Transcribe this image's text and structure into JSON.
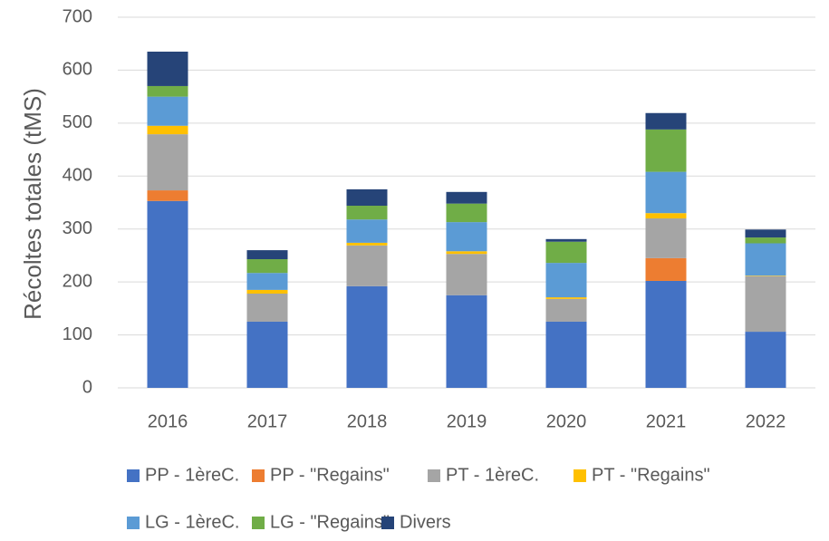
{
  "chart_data": {
    "type": "stacked_bar",
    "y_label": "Récoltes totales (tMS)",
    "categories": [
      "2016",
      "2017",
      "2018",
      "2019",
      "2020",
      "2021",
      "2022"
    ],
    "series": [
      {
        "name": "PP - 1èreC.",
        "color": "#4472c4",
        "values": [
          353,
          125,
          192,
          175,
          125,
          202,
          106
        ]
      },
      {
        "name": "PP - \"Regains\"",
        "color": "#ed7d31",
        "values": [
          20,
          0,
          0,
          0,
          0,
          43,
          0
        ]
      },
      {
        "name": "PT - 1èreC.",
        "color": "#a5a5a5",
        "values": [
          106,
          53,
          77,
          78,
          43,
          75,
          105
        ]
      },
      {
        "name": "PT - \"Regains\"",
        "color": "#ffc000",
        "values": [
          16,
          7,
          5,
          5,
          3,
          10,
          1
        ]
      },
      {
        "name": "LG - 1èreC.",
        "color": "#5b9bd5",
        "values": [
          55,
          32,
          44,
          55,
          65,
          78,
          61
        ]
      },
      {
        "name": "LG - \"Regains\"",
        "color": "#70ad47",
        "values": [
          20,
          26,
          26,
          35,
          40,
          80,
          11
        ]
      },
      {
        "name": "Divers",
        "color": "#264478",
        "values": [
          65,
          17,
          31,
          22,
          5,
          31,
          15
        ]
      }
    ],
    "ylim": [
      0,
      700
    ],
    "yticks": [
      0,
      100,
      200,
      300,
      400,
      500,
      600,
      700
    ],
    "grid": true
  }
}
